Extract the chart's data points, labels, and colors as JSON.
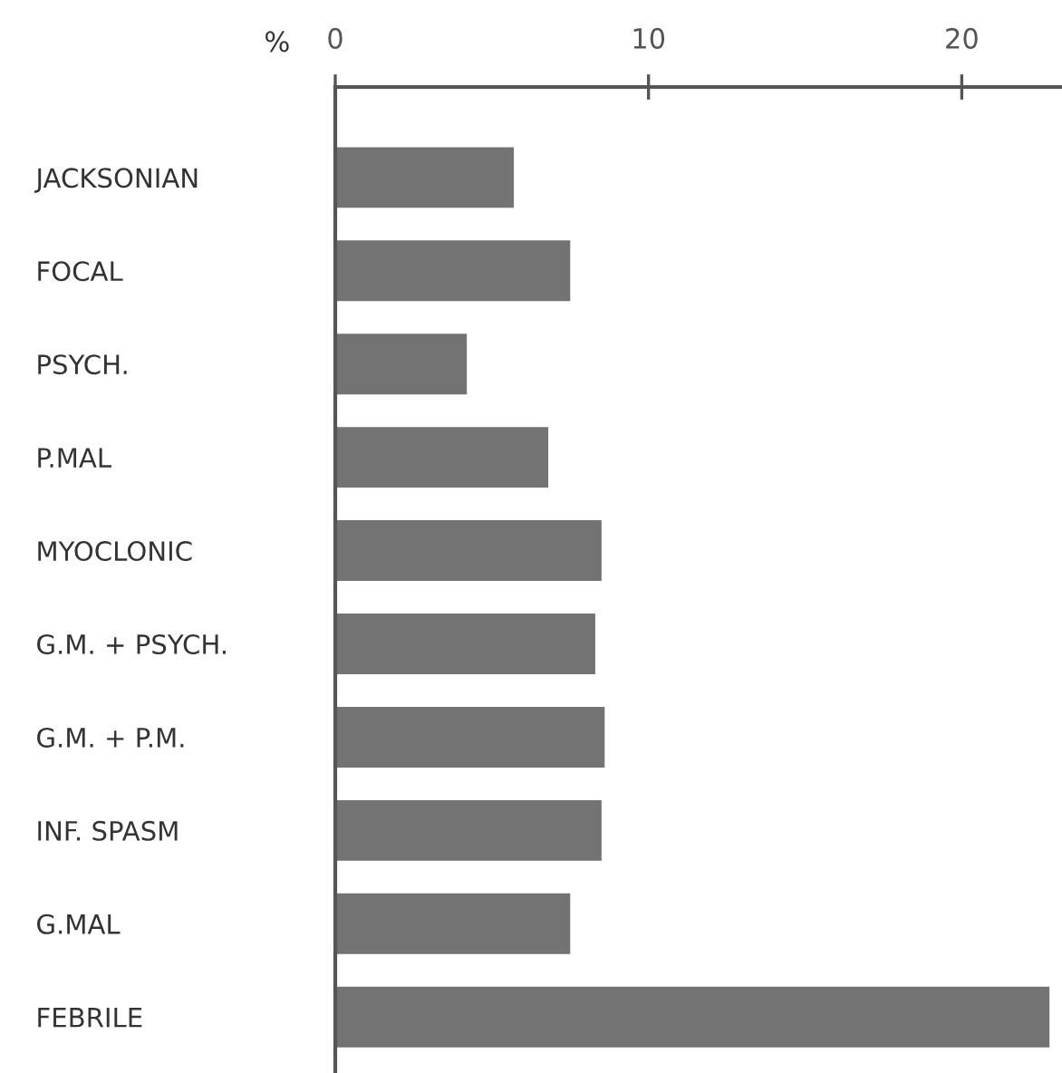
{
  "chart_data": {
    "type": "bar",
    "orientation": "horizontal",
    "xlabel": "%",
    "categories": [
      "JACKSONIAN",
      "FOCAL",
      "PSYCH.",
      "P.MAL",
      "MYOCLONIC",
      "G.M. + PSYCH.",
      "G.M. + P.M.",
      "INF. SPASM",
      "G.MAL",
      "FEBRILE"
    ],
    "values": [
      5.7,
      7.5,
      4.2,
      6.8,
      8.5,
      8.3,
      8.6,
      8.5,
      7.5,
      22.8
    ],
    "color": "#737373",
    "xlim": [
      0,
      23.2
    ],
    "xticks": [
      0,
      10,
      20
    ],
    "grid": false
  }
}
